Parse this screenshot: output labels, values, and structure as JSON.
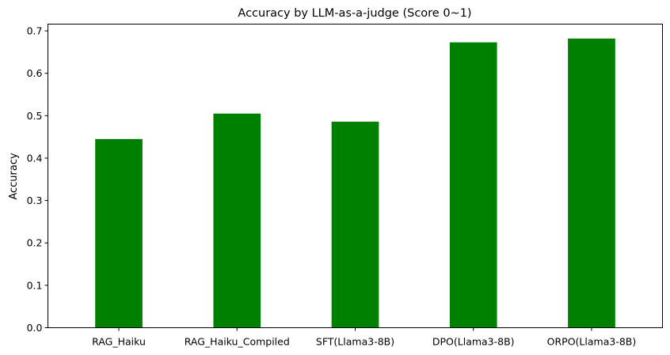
{
  "chart_data": {
    "type": "bar",
    "title": "Accuracy by LLM-as-a-judge (Score 0~1)",
    "xlabel": "",
    "ylabel": "Accuracy",
    "categories": [
      "RAG_Haiku",
      "RAG_Haiku_Compiled",
      "SFT(Llama3-8B)",
      "DPO(Llama3-8B)",
      "ORPO(Llama3-8B)"
    ],
    "values": [
      0.445,
      0.505,
      0.486,
      0.673,
      0.682
    ],
    "ylim": [
      0,
      0.716
    ],
    "yticks": [
      "0.0",
      "0.1",
      "0.2",
      "0.3",
      "0.4",
      "0.5",
      "0.6",
      "0.7"
    ],
    "bar_color": "#008000",
    "grid": false,
    "legend": "none"
  }
}
